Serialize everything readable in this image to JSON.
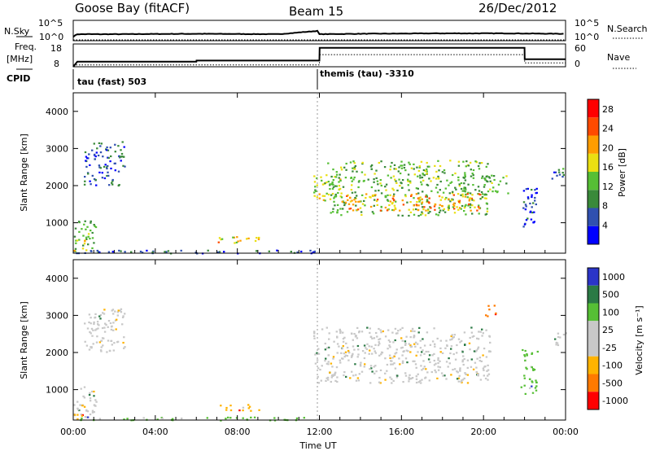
{
  "header": {
    "station": "Goose Bay (fitACF)",
    "beam": "Beam 15",
    "date": "26/Dec/2012"
  },
  "side_labels": {
    "nsky": "N.Sky",
    "nsearch": "N.Search",
    "freq_line1": "Freq.",
    "freq_line2": "[MHz]",
    "cpid": "CPID",
    "nave": "Nave",
    "noise_ticks_left": [
      "10^5",
      "10^0"
    ],
    "noise_ticks_right": [
      "10^5",
      "10^0"
    ],
    "freq_ticks_left": [
      "18",
      "8"
    ],
    "nave_ticks_right": [
      "60",
      "0"
    ]
  },
  "cpid_labels": [
    "tau (fast) 503",
    "themis (tau) -3310"
  ],
  "axes": {
    "ylabel": "Slant Range [km]",
    "xlabel": "Time UT",
    "y_ticks": [
      "1000",
      "2000",
      "3000",
      "4000"
    ],
    "x_ticks": [
      "00:00",
      "04:00",
      "08:00",
      "12:00",
      "16:00",
      "20:00",
      "00:00"
    ]
  },
  "chart_data": [
    {
      "type": "line",
      "title": "",
      "series": [
        {
          "name": "N.Sky",
          "x": [
            0,
            0.2,
            2,
            6,
            10,
            11.9,
            12,
            14,
            18,
            21,
            24
          ],
          "y": [
            1.0,
            1.6,
            1.6,
            1.7,
            1.6,
            2.4,
            1.6,
            1.7,
            1.8,
            1.8,
            1.7
          ]
        },
        {
          "name": "N.Search",
          "x": [
            0,
            24
          ],
          "y": [
            0.2,
            0.2
          ]
        }
      ],
      "xlim": [
        0,
        24
      ],
      "ylim": [
        0,
        5
      ],
      "log_scale": true
    },
    {
      "type": "line",
      "title": "",
      "series": [
        {
          "name": "Freq. [MHz]",
          "x": [
            0,
            0.2,
            6,
            6.01,
            12,
            12.01,
            22,
            22.01,
            24
          ],
          "y": [
            8,
            10.2,
            10.2,
            10.7,
            10.7,
            16.3,
            16.3,
            11.3,
            11.3
          ]
        },
        {
          "name": "Nave",
          "x": [
            0,
            12,
            12.01,
            22,
            22.01,
            24
          ],
          "y": [
            5,
            5,
            32,
            32,
            10,
            10
          ]
        }
      ],
      "xlim": [
        0,
        24
      ],
      "ylim_freq": [
        8,
        18
      ],
      "ylim_nave": [
        0,
        60
      ]
    },
    {
      "type": "heatmap",
      "title": "",
      "xlabel": "Time UT",
      "ylabel": "Slant Range [km]",
      "colorbar_label": "Power [dB]",
      "colorbar_ticks": [
        4,
        8,
        12,
        16,
        20,
        24,
        28
      ],
      "colorbar_range": [
        0,
        30
      ],
      "colorbar_colors": [
        "#0000ff",
        "#3050b0",
        "#3a8a3a",
        "#56bf35",
        "#eadf12",
        "#ff9d00",
        "#ff4a00",
        "#ff0000"
      ],
      "xlim": [
        0,
        24
      ],
      "ylim": [
        180,
        4500
      ],
      "regions": [
        {
          "t": [
            0.0,
            1.1
          ],
          "r": [
            250,
            1100
          ],
          "level": 12
        },
        {
          "t": [
            0.0,
            0.6
          ],
          "r": [
            200,
            600
          ],
          "level": 20
        },
        {
          "t": [
            0.5,
            2.5
          ],
          "r": [
            2000,
            3200
          ],
          "level": 6
        },
        {
          "t": [
            7.0,
            9.2
          ],
          "r": [
            450,
            650
          ],
          "level": 20
        },
        {
          "t": [
            0.0,
            12.0
          ],
          "r": [
            190,
            280
          ],
          "level": 5
        },
        {
          "t": [
            11.7,
            13.0
          ],
          "r": [
            1600,
            2300
          ],
          "level": 16
        },
        {
          "t": [
            12.3,
            20.3
          ],
          "r": [
            1200,
            2700
          ],
          "level": 13
        },
        {
          "t": [
            13.0,
            19.8
          ],
          "r": [
            1350,
            1800
          ],
          "level": 22
        },
        {
          "t": [
            20.0,
            21.2
          ],
          "r": [
            1800,
            2300
          ],
          "level": 13
        },
        {
          "t": [
            21.9,
            22.6
          ],
          "r": [
            900,
            2100
          ],
          "level": 6
        },
        {
          "t": [
            23.3,
            24.0
          ],
          "r": [
            2200,
            2600
          ],
          "level": 8
        }
      ]
    },
    {
      "type": "heatmap",
      "title": "",
      "xlabel": "Time UT",
      "ylabel": "Slant Range [km]",
      "colorbar_label": "Velocity [m s⁻¹]",
      "colorbar_ticks": [
        1000,
        500,
        100,
        25,
        -25,
        -100,
        -500,
        -1000
      ],
      "colorbar_colors": [
        "#2b35c8",
        "#2b7a45",
        "#56bf35",
        "#c8c8c8",
        "#c8c8c8",
        "#ffb300",
        "#ff7a00",
        "#ff0000"
      ],
      "xlim": [
        0,
        24
      ],
      "ylim": [
        180,
        4500
      ],
      "regions": [
        {
          "t": [
            0.0,
            1.1
          ],
          "r": [
            250,
            1100
          ],
          "level": 0
        },
        {
          "t": [
            0.0,
            0.6
          ],
          "r": [
            200,
            600
          ],
          "level": -100
        },
        {
          "t": [
            0.5,
            2.5
          ],
          "r": [
            2000,
            3200
          ],
          "level": 0
        },
        {
          "t": [
            7.0,
            9.2
          ],
          "r": [
            450,
            650
          ],
          "level": -100
        },
        {
          "t": [
            0.0,
            12.0
          ],
          "r": [
            190,
            280
          ],
          "level": 100
        },
        {
          "t": [
            11.7,
            20.3
          ],
          "r": [
            1200,
            2700
          ],
          "level": 0
        },
        {
          "t": [
            20.0,
            20.6
          ],
          "r": [
            3000,
            3300
          ],
          "level": -500
        },
        {
          "t": [
            21.8,
            22.6
          ],
          "r": [
            900,
            2100
          ],
          "level": 100
        },
        {
          "t": [
            23.3,
            24.0
          ],
          "r": [
            2200,
            2600
          ],
          "level": 0
        }
      ]
    }
  ]
}
